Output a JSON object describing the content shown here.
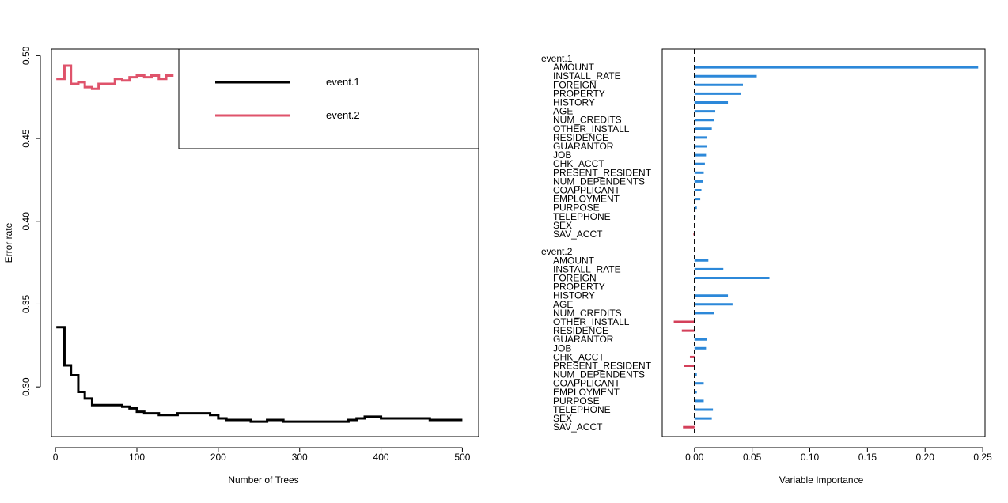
{
  "chart_data": [
    {
      "type": "line",
      "xlabel": "Number of Trees",
      "ylabel": "Error rate",
      "xlim": [
        -5,
        520
      ],
      "ylim": [
        0.27,
        0.504
      ],
      "xticks": [
        0,
        100,
        200,
        300,
        400,
        500
      ],
      "yticks": [
        0.3,
        0.35,
        0.4,
        0.45,
        0.5
      ],
      "ytick_labels": [
        "0.30",
        "0.35",
        "0.40",
        "0.45",
        "0.50"
      ],
      "legend_position": "top-right",
      "series": [
        {
          "name": "event.1",
          "color": "#000000",
          "x": [
            1,
            11,
            19,
            28,
            36,
            45,
            53,
            63,
            73,
            82,
            91,
            100,
            109,
            118,
            127,
            136,
            150,
            170,
            190,
            200,
            210,
            220,
            230,
            240,
            250,
            260,
            270,
            280,
            290,
            300,
            310,
            320,
            330,
            340,
            350,
            360,
            370,
            380,
            390,
            400,
            420,
            440,
            460,
            480,
            500
          ],
          "values": [
            0.336,
            0.313,
            0.307,
            0.297,
            0.293,
            0.289,
            0.289,
            0.289,
            0.289,
            0.288,
            0.287,
            0.285,
            0.284,
            0.284,
            0.283,
            0.283,
            0.284,
            0.284,
            0.283,
            0.281,
            0.28,
            0.28,
            0.28,
            0.279,
            0.279,
            0.28,
            0.28,
            0.279,
            0.279,
            0.279,
            0.279,
            0.279,
            0.279,
            0.279,
            0.279,
            0.28,
            0.281,
            0.282,
            0.282,
            0.281,
            0.281,
            0.281,
            0.28,
            0.28,
            0.28
          ]
        },
        {
          "name": "event.2",
          "color": "#df536b",
          "x": [
            1,
            11,
            19,
            28,
            36,
            45,
            53,
            63,
            73,
            82,
            91,
            100,
            109,
            118,
            127,
            136,
            145
          ],
          "values": [
            0.486,
            0.494,
            0.483,
            0.484,
            0.481,
            0.48,
            0.483,
            0.483,
            0.486,
            0.485,
            0.487,
            0.488,
            0.487,
            0.488,
            0.486,
            0.488,
            0.488
          ]
        }
      ]
    },
    {
      "type": "bar",
      "orientation": "horizontal",
      "xlabel": "Variable Importance",
      "xlim": [
        -0.028,
        0.252
      ],
      "xticks": [
        0.0,
        0.05,
        0.1,
        0.15,
        0.2,
        0.25
      ],
      "xtick_labels": [
        "0.00",
        "0.05",
        "0.10",
        "0.15",
        "0.20",
        "0.25"
      ],
      "positive_color": "#2c88d9",
      "negative_color": "#d4405a",
      "groups": [
        {
          "name": "event.1",
          "label_color": "#000000",
          "categories": [
            "AMOUNT",
            "INSTALL_RATE",
            "FOREIGN",
            "PROPERTY",
            "HISTORY",
            "AGE",
            "NUM_CREDITS",
            "OTHER_INSTALL",
            "RESIDENCE",
            "GUARANTOR",
            "JOB",
            "CHK_ACCT",
            "PRESENT_RESIDENT",
            "NUM_DEPENDENTS",
            "COAPPLICANT",
            "EMPLOYMENT",
            "PURPOSE",
            "TELEPHONE",
            "SEX",
            "SAV_ACCT"
          ],
          "values": [
            0.246,
            0.054,
            0.042,
            0.04,
            0.029,
            0.018,
            0.017,
            0.015,
            0.011,
            0.011,
            0.01,
            0.009,
            0.008,
            0.007,
            0.006,
            0.005,
            0.002,
            0.001,
            0.0005,
            -0.001
          ]
        },
        {
          "name": "event.2",
          "label_color": "#df536b",
          "categories": [
            "AMOUNT",
            "INSTALL_RATE",
            "FOREIGN",
            "PROPERTY",
            "HISTORY",
            "AGE",
            "NUM_CREDITS",
            "OTHER_INSTALL",
            "RESIDENCE",
            "GUARANTOR",
            "JOB",
            "CHK_ACCT",
            "PRESENT_RESIDENT",
            "NUM_DEPENDENTS",
            "COAPPLICANT",
            "EMPLOYMENT",
            "PURPOSE",
            "TELEPHONE",
            "SEX",
            "SAV_ACCT"
          ],
          "values": [
            0.012,
            0.025,
            0.065,
            0.001,
            0.029,
            0.033,
            0.017,
            -0.018,
            -0.011,
            0.011,
            0.01,
            -0.004,
            -0.009,
            0.002,
            0.008,
            0.002,
            0.008,
            0.016,
            0.015,
            -0.01
          ]
        }
      ]
    }
  ]
}
